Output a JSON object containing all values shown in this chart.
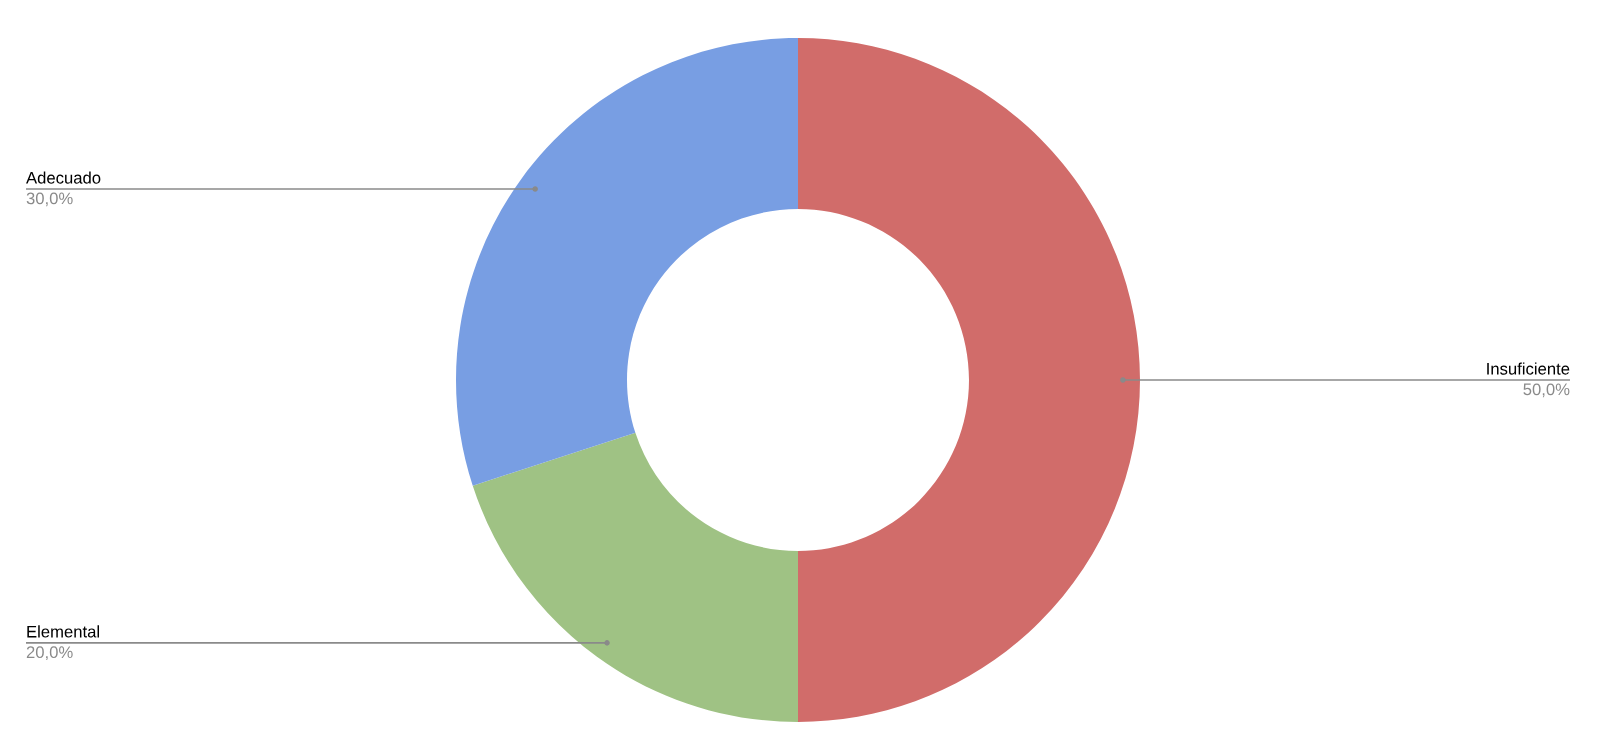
{
  "chart_data": {
    "type": "donut",
    "categories": [
      "Insuficiente",
      "Elemental",
      "Adecuado"
    ],
    "values": [
      50,
      20,
      30
    ],
    "colors": [
      "#d16c6a",
      "#9fc284",
      "#789ee3"
    ],
    "value_labels": [
      "50,0%",
      "20,0%",
      "30,0%"
    ],
    "legend": false
  }
}
